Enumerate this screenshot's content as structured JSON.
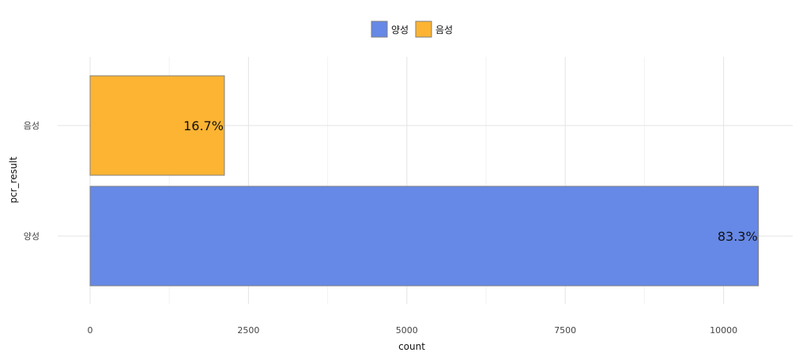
{
  "chart_data": {
    "type": "bar",
    "orientation": "horizontal",
    "categories": [
      "양성",
      "음성"
    ],
    "values": [
      10550,
      2120
    ],
    "percent_labels": [
      "83.3%",
      "16.7%"
    ],
    "colors": [
      "#6688e6",
      "#fdb432"
    ],
    "bar_border_color": "#7f7f7f",
    "xlabel": "count",
    "ylabel": "pcr_result",
    "xlim": [
      0,
      11100
    ],
    "x_ticks": [
      0,
      2500,
      5000,
      7500,
      10000
    ],
    "x_tick_labels": [
      "0",
      "2500",
      "5000",
      "7500",
      "10000"
    ],
    "legend": {
      "position": "top",
      "entries": [
        "양성",
        "음성"
      ]
    },
    "grid": true
  }
}
